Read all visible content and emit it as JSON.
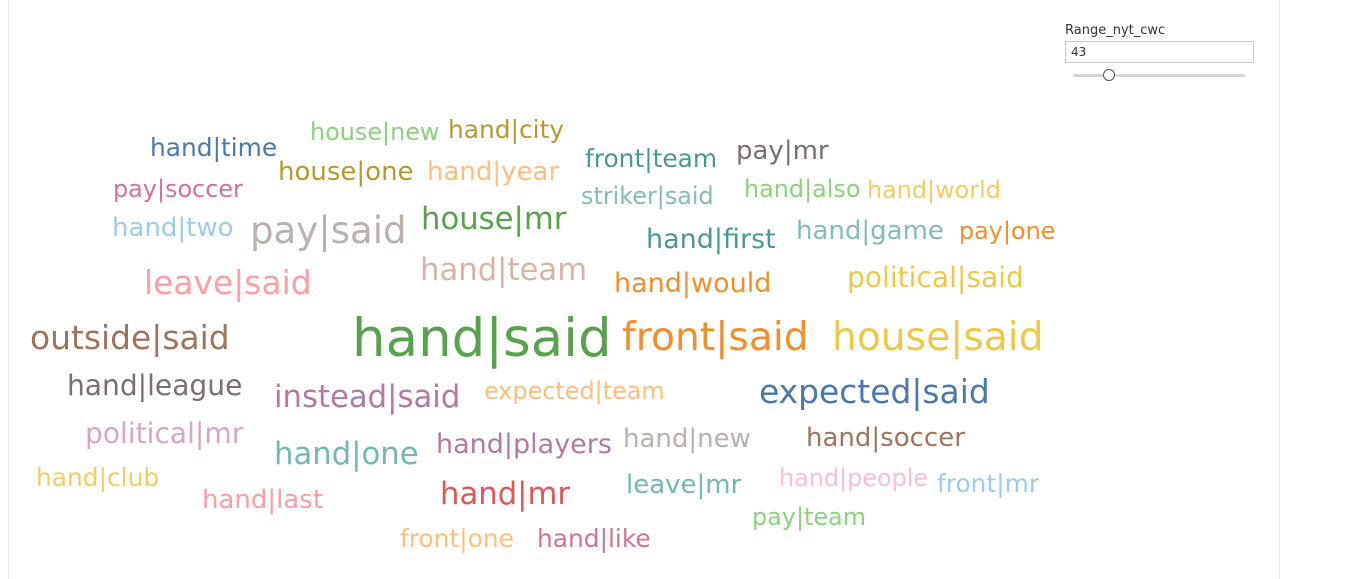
{
  "filter": {
    "title": "Range_nyt_cwc",
    "value": "43",
    "slider_fraction": 0.21
  },
  "chart_data": {
    "type": "wordcloud",
    "words": [
      {
        "text": "hand|said",
        "weight": 100,
        "color": "#59a14f"
      },
      {
        "text": "front|said",
        "weight": 74,
        "color": "#f28e2b"
      },
      {
        "text": "house|said",
        "weight": 74,
        "color": "#edc948"
      },
      {
        "text": "pay|said",
        "weight": 70,
        "color": "#bab0ac"
      },
      {
        "text": "outside|said",
        "weight": 62,
        "color": "#9c755f"
      },
      {
        "text": "expected|said",
        "weight": 62,
        "color": "#4e79a7"
      },
      {
        "text": "leave|said",
        "weight": 62,
        "color": "#ff9da7"
      },
      {
        "text": "hand|one",
        "weight": 58,
        "color": "#76b7b2"
      },
      {
        "text": "hand|mr",
        "weight": 58,
        "color": "#e15759"
      },
      {
        "text": "house|mr",
        "weight": 58,
        "color": "#59a14f"
      },
      {
        "text": "hand|team",
        "weight": 58,
        "color": "#d7b5a6"
      },
      {
        "text": "instead|said",
        "weight": 58,
        "color": "#b07aa1"
      },
      {
        "text": "hand|league",
        "weight": 53,
        "color": "#79706e"
      },
      {
        "text": "political|said",
        "weight": 53,
        "color": "#edc948"
      },
      {
        "text": "political|mr",
        "weight": 53,
        "color": "#d4a6c8"
      },
      {
        "text": "hand|would",
        "weight": 51,
        "color": "#f28e2b"
      },
      {
        "text": "hand|first",
        "weight": 51,
        "color": "#499894"
      },
      {
        "text": "hand|players",
        "weight": 51,
        "color": "#b07aa1"
      },
      {
        "text": "hand|soccer",
        "weight": 49,
        "color": "#9c755f"
      },
      {
        "text": "hand|new",
        "weight": 49,
        "color": "#bab0ac"
      },
      {
        "text": "leave|mr",
        "weight": 49,
        "color": "#76b7b2"
      },
      {
        "text": "hand|last",
        "weight": 49,
        "color": "#ff9da7"
      },
      {
        "text": "house|one",
        "weight": 49,
        "color": "#b6992d"
      },
      {
        "text": "hand|year",
        "weight": 49,
        "color": "#ffbe7d"
      },
      {
        "text": "pay|mr",
        "weight": 49,
        "color": "#79706e"
      },
      {
        "text": "hand|game",
        "weight": 49,
        "color": "#86bcb6"
      },
      {
        "text": "hand|two",
        "weight": 49,
        "color": "#a0cbe8"
      },
      {
        "text": "hand|time",
        "weight": 47,
        "color": "#4e79a7"
      },
      {
        "text": "front|team",
        "weight": 47,
        "color": "#499894"
      },
      {
        "text": "hand|city",
        "weight": 47,
        "color": "#b6992d"
      },
      {
        "text": "hand|club",
        "weight": 47,
        "color": "#f1ce63"
      },
      {
        "text": "front|one",
        "weight": 47,
        "color": "#ffbe7d"
      },
      {
        "text": "hand|like",
        "weight": 47,
        "color": "#d37295"
      },
      {
        "text": "front|mr",
        "weight": 47,
        "color": "#a0cbe8"
      },
      {
        "text": "house|new",
        "weight": 45,
        "color": "#8cd17d"
      },
      {
        "text": "pay|soccer",
        "weight": 45,
        "color": "#d37295"
      },
      {
        "text": "striker|said",
        "weight": 45,
        "color": "#86bcb6"
      },
      {
        "text": "hand|also",
        "weight": 45,
        "color": "#8cd17d"
      },
      {
        "text": "hand|world",
        "weight": 45,
        "color": "#f1ce63"
      },
      {
        "text": "pay|one",
        "weight": 45,
        "color": "#f28e2b"
      },
      {
        "text": "expected|team",
        "weight": 45,
        "color": "#ffbe7d"
      },
      {
        "text": "hand|people",
        "weight": 45,
        "color": "#fabfd2"
      },
      {
        "text": "pay|team",
        "weight": 45,
        "color": "#8cd17d"
      }
    ]
  }
}
